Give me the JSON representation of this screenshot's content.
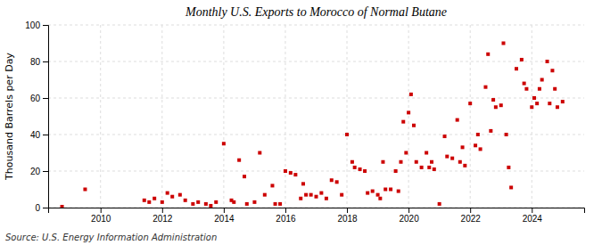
{
  "chart_data": {
    "type": "scatter",
    "title": "Monthly U.S. Exports to Morocco of Normal Butane",
    "ylabel": "Thousand Barrels per Day",
    "source": "Source: U.S. Energy Information Administration",
    "color": "#cc0000",
    "marker": "square",
    "grid": true,
    "xlim": [
      2008.3,
      2025.7
    ],
    "xticks": [
      2010,
      2012,
      2014,
      2016,
      2018,
      2020,
      2022,
      2024
    ],
    "ylim": [
      0,
      100
    ],
    "yticks": [
      0,
      20,
      40,
      60,
      80,
      100
    ],
    "x": [
      2008.75,
      2009.5,
      2011.42,
      2011.58,
      2011.75,
      2012.0,
      2012.17,
      2012.33,
      2012.58,
      2012.75,
      2013.0,
      2013.17,
      2013.42,
      2013.58,
      2013.75,
      2014.0,
      2014.25,
      2014.33,
      2014.5,
      2014.67,
      2014.75,
      2015.0,
      2015.17,
      2015.33,
      2015.58,
      2015.67,
      2015.83,
      2016.0,
      2016.17,
      2016.33,
      2016.5,
      2016.58,
      2016.67,
      2016.83,
      2017.0,
      2017.17,
      2017.33,
      2017.5,
      2017.67,
      2017.83,
      2018.0,
      2018.17,
      2018.25,
      2018.42,
      2018.58,
      2018.67,
      2018.83,
      2019.0,
      2019.08,
      2019.17,
      2019.25,
      2019.42,
      2019.58,
      2019.67,
      2019.75,
      2019.83,
      2019.92,
      2020.0,
      2020.08,
      2020.17,
      2020.25,
      2020.42,
      2020.58,
      2020.67,
      2020.75,
      2020.83,
      2021.0,
      2021.17,
      2021.25,
      2021.42,
      2021.58,
      2021.67,
      2021.75,
      2021.83,
      2022.0,
      2022.17,
      2022.25,
      2022.33,
      2022.5,
      2022.58,
      2022.67,
      2022.75,
      2022.83,
      2023.0,
      2023.08,
      2023.17,
      2023.25,
      2023.33,
      2023.5,
      2023.67,
      2023.75,
      2023.83,
      2024.0,
      2024.08,
      2024.17,
      2024.25,
      2024.33,
      2024.5,
      2024.58,
      2024.67,
      2024.75,
      2024.83,
      2025.0
    ],
    "values": [
      0.5,
      10,
      4,
      3,
      5,
      3,
      8,
      6,
      7,
      4,
      2,
      3,
      2,
      1,
      3,
      35,
      4,
      3,
      26,
      17,
      2,
      3,
      30,
      7,
      12,
      2,
      2,
      20,
      19,
      18,
      5,
      13,
      7,
      7,
      6,
      8,
      5,
      15,
      14,
      7,
      40,
      25,
      22,
      21,
      20,
      8,
      9,
      7,
      5,
      25,
      10,
      10,
      20,
      9,
      25,
      47,
      30,
      52,
      62,
      45,
      25,
      22,
      30,
      22,
      25,
      21,
      2,
      39,
      28,
      27,
      48,
      25,
      33,
      23,
      57,
      34,
      40,
      32,
      66,
      84,
      42,
      59,
      55,
      56,
      90,
      40,
      22,
      11,
      76,
      81,
      68,
      65,
      55,
      60,
      57,
      65,
      70,
      80,
      57,
      75,
      65,
      55,
      58
    ]
  }
}
